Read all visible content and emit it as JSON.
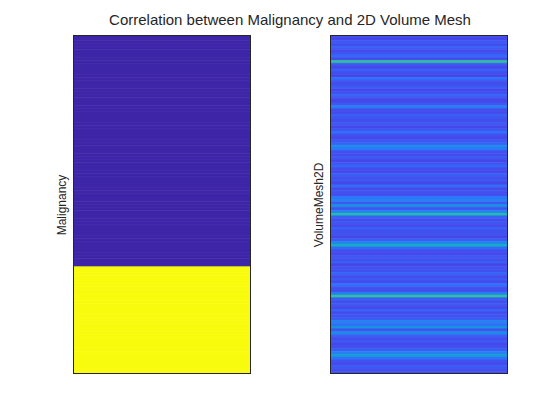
{
  "title": "Correlation between Malignancy and 2D Volume Mesh",
  "chart_data": [
    {
      "type": "heatmap",
      "ylabel": "Malignancy",
      "tick_labels": false,
      "clim": [
        0,
        1
      ],
      "values": [
        0,
        0,
        0,
        0,
        0,
        0,
        0,
        0,
        0,
        0,
        0,
        0,
        0,
        0,
        0,
        0,
        0,
        0,
        0,
        0,
        0,
        0,
        0,
        0,
        0,
        0,
        0,
        0,
        0,
        0,
        0,
        0,
        0,
        0,
        0,
        0,
        0,
        0,
        0,
        0,
        0,
        0,
        0,
        0,
        0,
        0,
        0,
        0,
        0,
        0,
        0,
        0,
        0,
        0,
        0,
        0,
        0,
        0,
        0,
        0,
        0,
        0,
        0,
        0,
        0,
        0,
        0,
        0,
        0,
        0,
        0,
        0,
        0,
        0,
        0,
        0,
        0,
        0,
        0,
        0,
        0,
        0,
        1,
        1,
        1,
        1,
        1,
        1,
        1,
        1,
        1,
        1,
        1,
        1,
        1,
        1,
        1,
        1,
        1,
        1,
        1,
        1,
        1,
        1,
        1,
        1,
        1,
        1,
        1,
        1,
        1,
        1,
        1,
        1,
        1,
        1,
        1,
        1,
        1,
        1
      ]
    },
    {
      "type": "heatmap",
      "ylabel": "VolumeMesh2D",
      "tick_labels": false,
      "clim": [
        0,
        1
      ],
      "values": [
        0.15,
        0.12,
        0.18,
        0.14,
        0.2,
        0.13,
        0.16,
        0.22,
        0.14,
        0.55,
        0.17,
        0.13,
        0.19,
        0.15,
        0.12,
        0.24,
        0.16,
        0.14,
        0.18,
        0.13,
        0.15,
        0.21,
        0.14,
        0.12,
        0.17,
        0.28,
        0.15,
        0.13,
        0.19,
        0.16,
        0.14,
        0.18,
        0.12,
        0.16,
        0.23,
        0.15,
        0.13,
        0.17,
        0.2,
        0.32,
        0.26,
        0.15,
        0.14,
        0.18,
        0.12,
        0.16,
        0.21,
        0.14,
        0.13,
        0.19,
        0.15,
        0.17,
        0.12,
        0.22,
        0.14,
        0.16,
        0.13,
        0.25,
        0.3,
        0.18,
        0.35,
        0.16,
        0.28,
        0.52,
        0.2,
        0.14,
        0.17,
        0.13,
        0.19,
        0.15,
        0.16,
        0.12,
        0.18,
        0.3,
        0.45,
        0.22,
        0.15,
        0.13,
        0.17,
        0.14,
        0.19,
        0.12,
        0.16,
        0.15,
        0.21,
        0.13,
        0.18,
        0.14,
        0.24,
        0.16,
        0.13,
        0.28,
        0.55,
        0.19,
        0.15,
        0.17,
        0.12,
        0.2,
        0.14,
        0.16,
        0.18,
        0.3,
        0.22,
        0.36,
        0.16,
        0.33,
        0.2,
        0.14,
        0.17,
        0.13,
        0.15,
        0.19,
        0.28,
        0.4,
        0.24,
        0.16,
        0.13,
        0.18,
        0.15,
        0.14
      ]
    }
  ]
}
